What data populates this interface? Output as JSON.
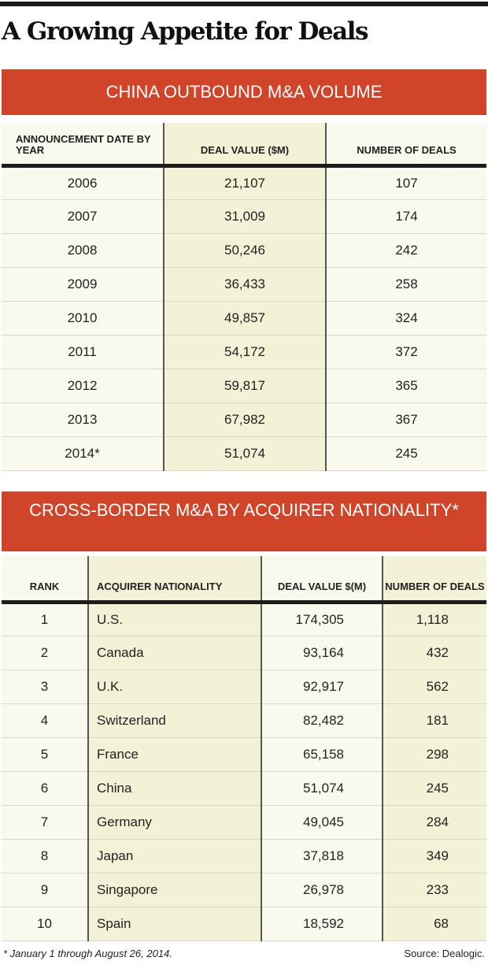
{
  "title": "A Growing Appetite for Deals",
  "table1": {
    "title": "CHINA OUTBOUND M&A VOLUME",
    "headers": [
      "ANNOUNCEMENT DATE BY YEAR",
      "DEAL VALUE ($M)",
      "NUMBER OF DEALS"
    ],
    "rows": [
      [
        "2006",
        "21,107",
        "107"
      ],
      [
        "2007",
        "31,009",
        "174"
      ],
      [
        "2008",
        "50,246",
        "242"
      ],
      [
        "2009",
        "36,433",
        "258"
      ],
      [
        "2010",
        "49,857",
        "324"
      ],
      [
        "2011",
        "54,172",
        "372"
      ],
      [
        "2012",
        "59,817",
        "365"
      ],
      [
        "2013",
        "67,982",
        "367"
      ],
      [
        "2014*",
        "51,074",
        "245"
      ]
    ]
  },
  "table2": {
    "title": "CROSS-BORDER M&A BY ACQUIRER NATIONALITY*",
    "headers": [
      "RANK",
      "ACQUIRER NATIONALITY",
      "DEAL VALUE $(M)",
      "NUMBER OF DEALS"
    ],
    "rows": [
      [
        "1",
        "U.S.",
        "174,305",
        "1,118"
      ],
      [
        "2",
        "Canada",
        "93,164",
        "432"
      ],
      [
        "3",
        "U.K.",
        "92,917",
        "562"
      ],
      [
        "4",
        "Switzerland",
        "82,482",
        "181"
      ],
      [
        "5",
        "France",
        "65,158",
        "298"
      ],
      [
        "6",
        "China",
        "51,074",
        "245"
      ],
      [
        "7",
        "Germany",
        "49,045",
        "284"
      ],
      [
        "8",
        "Japan",
        "37,818",
        "349"
      ],
      [
        "9",
        "Singapore",
        "26,978",
        "233"
      ],
      [
        "10",
        "Spain",
        "18,592",
        "68"
      ]
    ]
  },
  "footnote": "* January 1 through August 26, 2014.",
  "source": "Source: Dealogic.",
  "colors": {
    "band": "#d0442a",
    "cell": "#faf9ee",
    "highlight": "#f3f1d6"
  }
}
